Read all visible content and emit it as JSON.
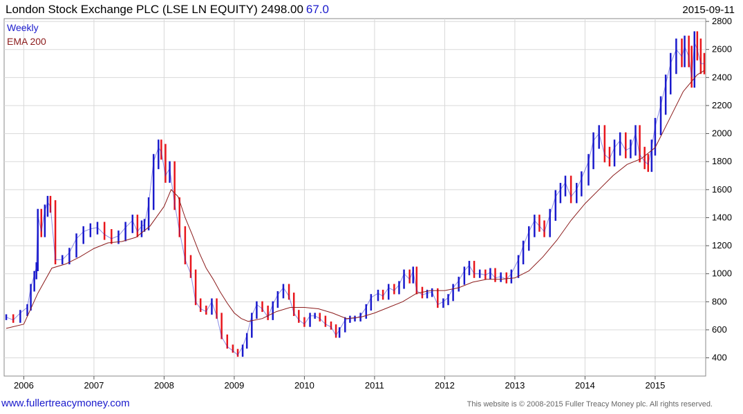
{
  "header": {
    "title": "London Stock Exchange PLC (LSE LN EQUITY) 2498.00",
    "change": "67.0",
    "date": "2015-09-11"
  },
  "footer": {
    "link": "www.fullertreacymoney.com",
    "copyright": "This website is © 2008-2015 Fuller Treacy Money plc. All rights reserved."
  },
  "chart_data": {
    "type": "line",
    "title": "London Stock Exchange PLC (LSE LN EQUITY) 2498.00 67.0",
    "xlabel": "",
    "ylabel": "",
    "xlim": [
      2005.72,
      2015.72
    ],
    "ylim": [
      270,
      2820
    ],
    "x_ticks": [
      2006,
      2007,
      2008,
      2009,
      2010,
      2011,
      2012,
      2013,
      2014,
      2015
    ],
    "x_tick_labels": [
      "2006",
      "2007",
      "2008",
      "2009",
      "2010",
      "2011",
      "2012",
      "2013",
      "2014",
      "2015"
    ],
    "y_ticks": [
      400,
      600,
      800,
      1000,
      1200,
      1400,
      1600,
      1800,
      2000,
      2200,
      2400,
      2600,
      2800
    ],
    "y_axis_side": "right",
    "grid": true,
    "legend_position": "top-left",
    "legend": [
      {
        "label": "Weekly",
        "color": "#1a1acc"
      },
      {
        "label": "EMA 200",
        "color": "#8b1a1a"
      }
    ],
    "up_color": "#1a1acc",
    "down_color": "#e8151b",
    "series": [
      {
        "name": "Weekly",
        "x": [
          2005.75,
          2005.85,
          2005.95,
          2006.05,
          2006.1,
          2006.15,
          2006.18,
          2006.2,
          2006.25,
          2006.3,
          2006.34,
          2006.38,
          2006.45,
          2006.55,
          2006.65,
          2006.75,
          2006.85,
          2006.95,
          2007.05,
          2007.15,
          2007.25,
          2007.35,
          2007.45,
          2007.55,
          2007.62,
          2007.68,
          2007.72,
          2007.78,
          2007.85,
          2007.92,
          2007.96,
          2008.02,
          2008.08,
          2008.15,
          2008.22,
          2008.3,
          2008.38,
          2008.45,
          2008.52,
          2008.6,
          2008.68,
          2008.75,
          2008.82,
          2008.9,
          2008.98,
          2009.05,
          2009.12,
          2009.18,
          2009.25,
          2009.32,
          2009.4,
          2009.48,
          2009.55,
          2009.62,
          2009.7,
          2009.78,
          2009.85,
          2009.92,
          2010.0,
          2010.08,
          2010.15,
          2010.22,
          2010.3,
          2010.38,
          2010.45,
          2010.5,
          2010.58,
          2010.65,
          2010.72,
          2010.8,
          2010.88,
          2010.95,
          2011.05,
          2011.12,
          2011.2,
          2011.28,
          2011.35,
          2011.42,
          2011.5,
          2011.55,
          2011.6,
          2011.68,
          2011.75,
          2011.82,
          2011.9,
          2011.98,
          2012.05,
          2012.12,
          2012.2,
          2012.28,
          2012.35,
          2012.42,
          2012.5,
          2012.58,
          2012.65,
          2012.72,
          2012.8,
          2012.88,
          2012.95,
          2013.05,
          2013.12,
          2013.2,
          2013.28,
          2013.35,
          2013.42,
          2013.5,
          2013.58,
          2013.65,
          2013.72,
          2013.8,
          2013.88,
          2013.95,
          2014.05,
          2014.12,
          2014.2,
          2014.28,
          2014.35,
          2014.42,
          2014.5,
          2014.58,
          2014.65,
          2014.72,
          2014.78,
          2014.85,
          2014.9,
          2014.95,
          2015.0,
          2015.08,
          2015.15,
          2015.22,
          2015.3,
          2015.38,
          2015.42,
          2015.48,
          2015.52,
          2015.56,
          2015.6,
          2015.65,
          2015.7
        ],
        "values": [
          690,
          670,
          720,
          760,
          900,
          990,
          1050,
          1420,
          1300,
          1450,
          1510,
          1480,
          1100,
          1100,
          1150,
          1250,
          1300,
          1320,
          1330,
          1280,
          1250,
          1270,
          1330,
          1380,
          1300,
          1340,
          1350,
          1500,
          1800,
          1900,
          1870,
          1700,
          1750,
          1500,
          1300,
          1100,
          1000,
          800,
          750,
          730,
          800,
          700,
          550,
          480,
          450,
          420,
          480,
          560,
          700,
          780,
          750,
          690,
          780,
          850,
          900,
          840,
          720,
          670,
          640,
          700,
          700,
          680,
          640,
          620,
          560,
          600,
          670,
          680,
          680,
          700,
          760,
          830,
          860,
          840,
          900,
          880,
          920,
          1000,
          960,
          1020,
          880,
          850,
          860,
          870,
          780,
          800,
          830,
          900,
          950,
          1020,
          1060,
          1000,
          1000,
          990,
          1010,
          970,
          980,
          960,
          1000,
          1100,
          1200,
          1300,
          1380,
          1340,
          1300,
          1420,
          1550,
          1600,
          1650,
          1550,
          1600,
          1680,
          1800,
          1950,
          2000,
          1850,
          1820,
          1900,
          1950,
          1880,
          1900,
          2000,
          1850,
          1800,
          1780,
          1900,
          2050,
          2200,
          2350,
          2500,
          2600,
          2550,
          2620,
          2550,
          2400,
          2650,
          2600,
          2500,
          2498
        ]
      },
      {
        "name": "EMA 200",
        "x": [
          2005.75,
          2006.0,
          2006.2,
          2006.4,
          2006.6,
          2006.8,
          2007.0,
          2007.2,
          2007.4,
          2007.6,
          2007.8,
          2008.0,
          2008.1,
          2008.2,
          2008.3,
          2008.4,
          2008.5,
          2008.6,
          2008.7,
          2008.8,
          2008.9,
          2009.0,
          2009.1,
          2009.2,
          2009.4,
          2009.6,
          2009.8,
          2010.0,
          2010.2,
          2010.4,
          2010.6,
          2010.8,
          2011.0,
          2011.2,
          2011.4,
          2011.6,
          2011.8,
          2012.0,
          2012.2,
          2012.4,
          2012.6,
          2012.8,
          2013.0,
          2013.2,
          2013.4,
          2013.6,
          2013.8,
          2014.0,
          2014.2,
          2014.4,
          2014.6,
          2014.8,
          2015.0,
          2015.2,
          2015.4,
          2015.6,
          2015.7
        ],
        "values": [
          610,
          640,
          860,
          1040,
          1070,
          1120,
          1180,
          1220,
          1230,
          1260,
          1340,
          1480,
          1600,
          1550,
          1400,
          1280,
          1150,
          1040,
          960,
          870,
          790,
          720,
          680,
          660,
          680,
          730,
          760,
          760,
          750,
          720,
          680,
          690,
          720,
          760,
          800,
          860,
          880,
          880,
          900,
          940,
          960,
          960,
          970,
          1020,
          1120,
          1240,
          1380,
          1500,
          1600,
          1700,
          1780,
          1820,
          1900,
          2100,
          2300,
          2420,
          2450
        ]
      }
    ]
  }
}
